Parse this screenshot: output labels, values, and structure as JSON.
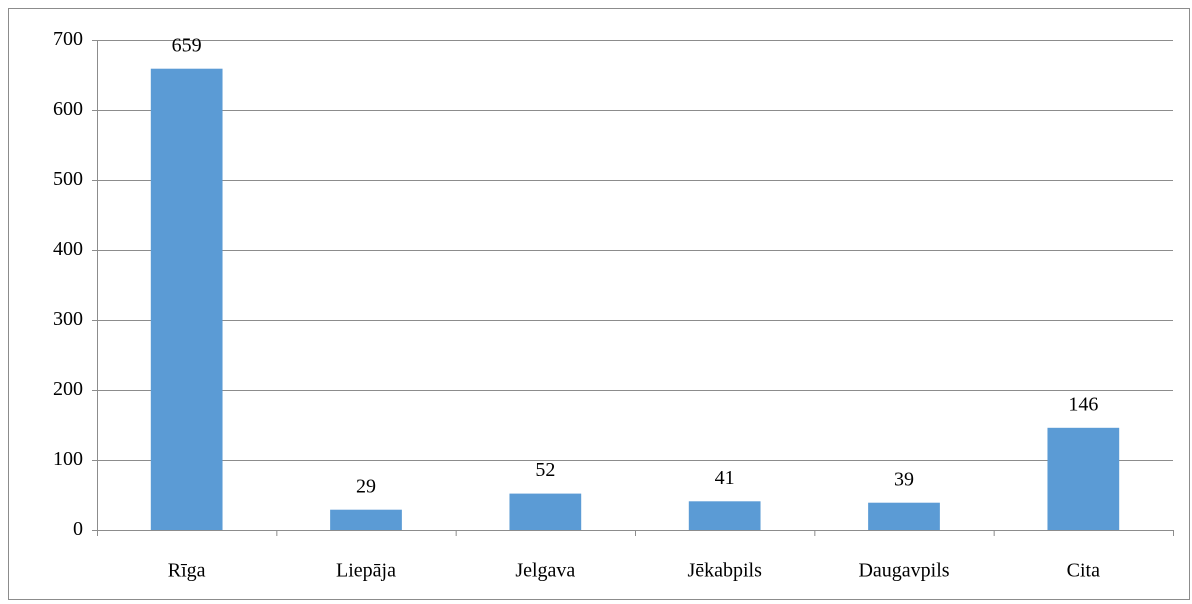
{
  "chart_data": {
    "type": "bar",
    "categories": [
      "Rīga",
      "Liepāja",
      "Jelgava",
      "Jēkabpils",
      "Daugavpils",
      "Cita"
    ],
    "values": [
      659,
      29,
      52,
      41,
      39,
      146
    ],
    "color": "#5b9bd5",
    "ylim": [
      0,
      700
    ],
    "yticks": [
      0,
      100,
      200,
      300,
      400,
      500,
      600,
      700
    ],
    "grid": true,
    "data_labels": true
  }
}
